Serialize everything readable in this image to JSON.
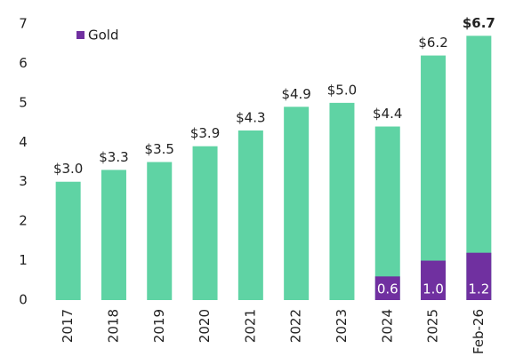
{
  "chart_data": {
    "type": "bar",
    "categories": [
      "2017",
      "2018",
      "2019",
      "2020",
      "2021",
      "2022",
      "2023",
      "2024",
      "2025",
      "Feb-26"
    ],
    "totals": {
      "color": "#5fd3a4",
      "values": [
        3.0,
        3.3,
        3.5,
        3.9,
        4.3,
        4.9,
        5.0,
        4.4,
        6.2,
        6.7
      ],
      "value_labels": [
        "$3.0",
        "$3.3",
        "$3.5",
        "$3.9",
        "$4.3",
        "$4.9",
        "$5.0",
        "$4.4",
        "$6.2",
        "$6.7"
      ],
      "emphasis_index": 9
    },
    "series": [
      {
        "name": "Gold",
        "color": "#7030a0",
        "values": [
          null,
          null,
          null,
          null,
          null,
          null,
          null,
          0.6,
          1.0,
          1.2
        ],
        "value_labels": [
          null,
          null,
          null,
          null,
          null,
          null,
          null,
          "0.6",
          "1.0",
          "1.2"
        ]
      }
    ],
    "ylim": [
      0,
      7
    ],
    "yticks": [
      0,
      1,
      2,
      3,
      4,
      5,
      6,
      7
    ],
    "grid": false,
    "legend": "top-left"
  }
}
